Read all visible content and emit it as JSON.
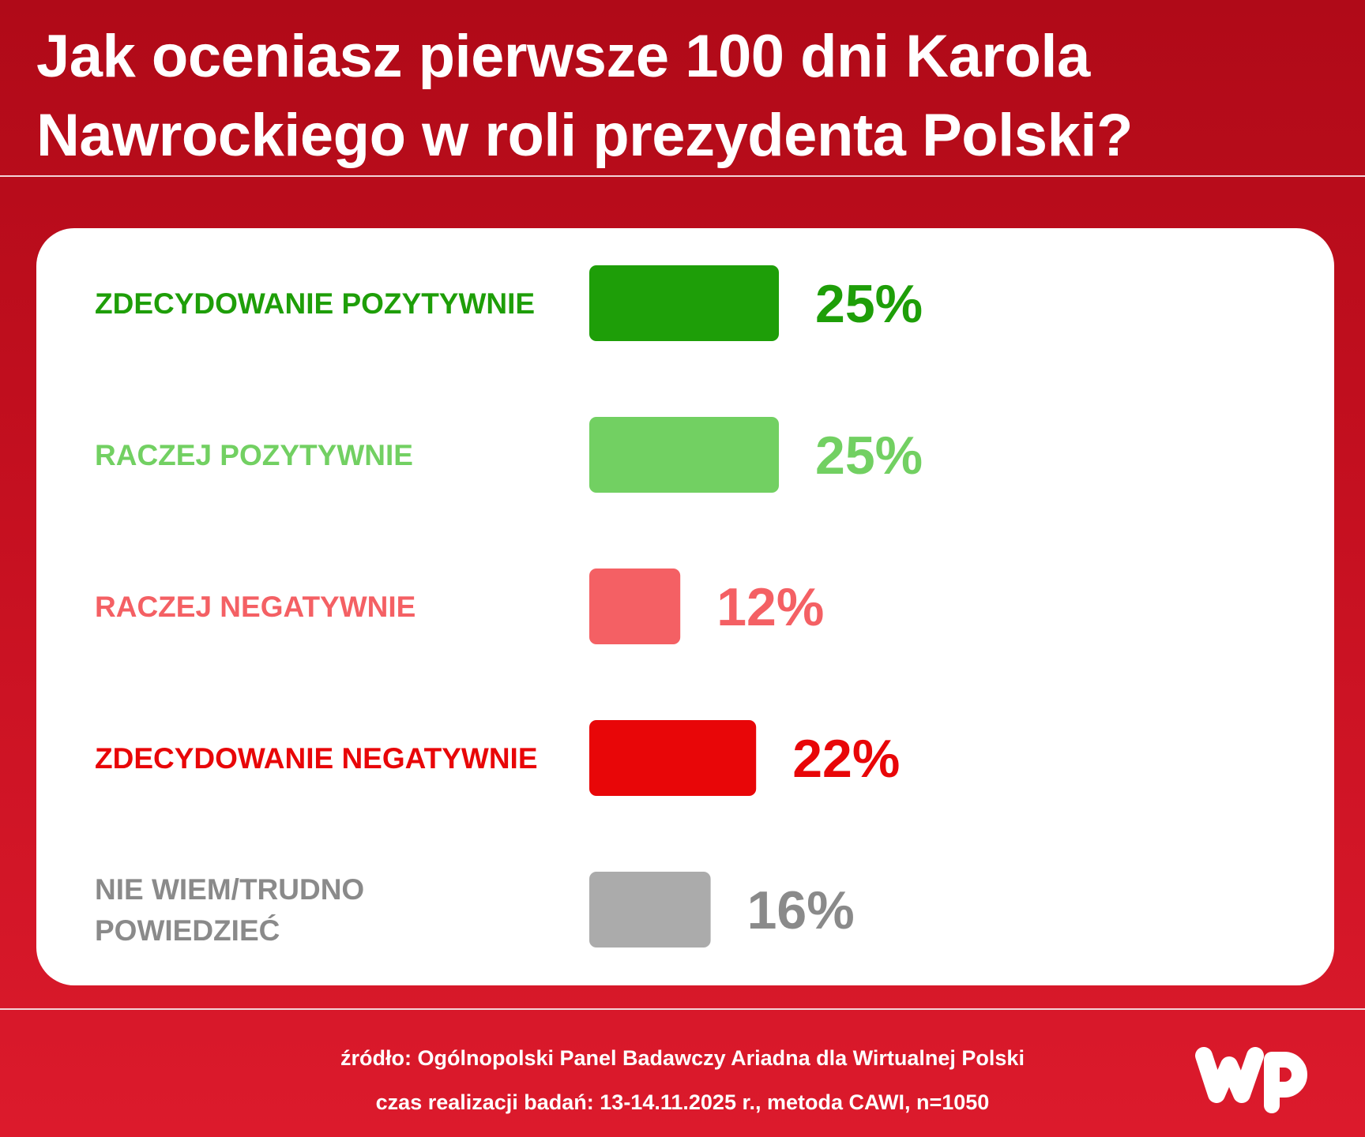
{
  "header": {
    "title_line1": "Jak oceniasz pierwsze 100 dni Karola",
    "title_line2": "Nawrockiego w roli prezydenta Polski?"
  },
  "chart_data": {
    "type": "bar",
    "orientation": "horizontal",
    "categories": [
      [
        "ZDECYDOWANIE POZYTYWNIE"
      ],
      [
        "RACZEJ POZYTYWNIE"
      ],
      [
        "RACZEJ NEGATYWNIE"
      ],
      [
        "ZDECYDOWANIE NEGATYWNIE"
      ],
      [
        "NIE WIEM/TRUDNO",
        "POWIEDZIEĆ"
      ]
    ],
    "values": [
      25,
      25,
      12,
      22,
      16
    ],
    "value_labels": [
      "25%",
      "25%",
      "12%",
      "22%",
      "16%"
    ],
    "colors": [
      "#1e9e08",
      "#72d062",
      "#f46064",
      "#e80608",
      "#ababab"
    ],
    "label_colors": [
      "#1e9e08",
      "#72d062",
      "#f46064",
      "#e80608",
      "#8a8a8a"
    ],
    "grid": false,
    "legend": "none"
  },
  "footer": {
    "source": "źródło: Ogólnopolski Panel Badawczy Ariadna dla Wirtualnej Polski",
    "details": "czas realizacji badań: 13-14.11.2025 r., metoda CAWI, n=1050"
  },
  "logo": {
    "text": "WP",
    "icon": "wp-logo-icon"
  }
}
